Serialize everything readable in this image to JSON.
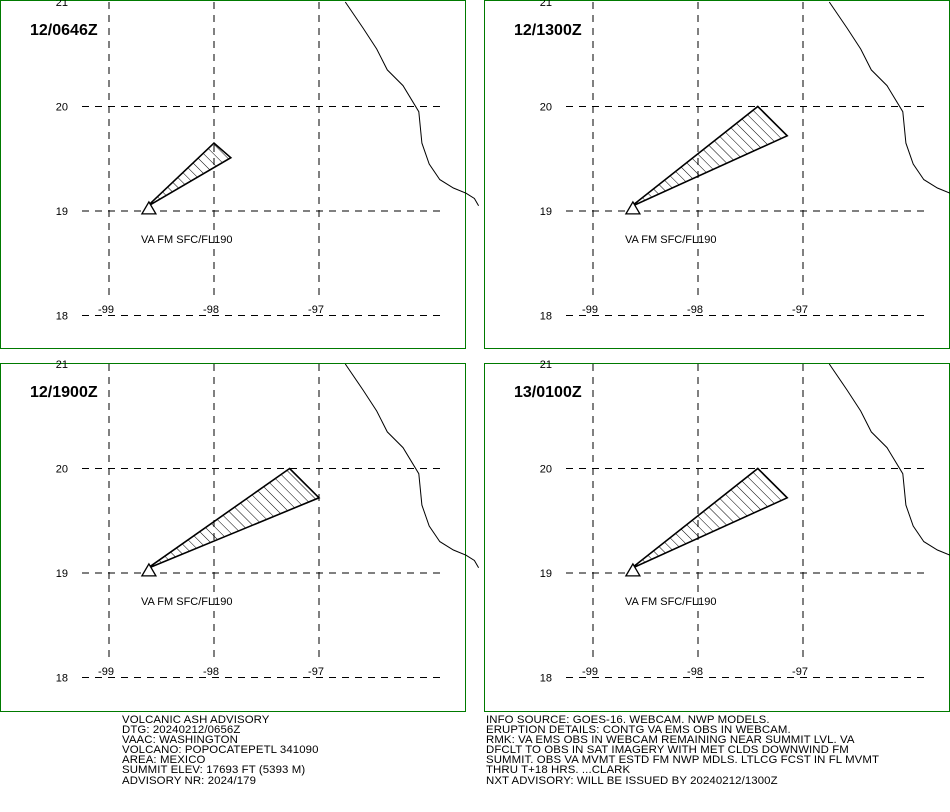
{
  "panels": [
    {
      "time_label": "12/0646Z",
      "va_label": "VA FM SFC/FL190",
      "polygon": [
        [
          -98.0,
          19.65
        ],
        [
          -97.84,
          19.51
        ],
        [
          -98.64,
          19.04
        ]
      ]
    },
    {
      "time_label": "12/1300Z",
      "va_label": "VA FM SFC/FL190",
      "polygon": [
        [
          -97.43,
          20.0
        ],
        [
          -97.15,
          19.72
        ],
        [
          -98.64,
          19.04
        ]
      ]
    },
    {
      "time_label": "12/1900Z",
      "va_label": "VA FM SFC/FL190",
      "polygon": [
        [
          -97.28,
          20.0
        ],
        [
          -97.0,
          19.72
        ],
        [
          -98.64,
          19.04
        ]
      ]
    },
    {
      "time_label": "13/0100Z",
      "va_label": "VA FM SFC/FL190",
      "polygon": [
        [
          -97.43,
          20.0
        ],
        [
          -97.15,
          19.72
        ],
        [
          -98.64,
          19.04
        ]
      ]
    }
  ],
  "axes": {
    "lat_labels": [
      "21",
      "20",
      "19",
      "18"
    ],
    "lon_labels": [
      "-99",
      "-98",
      "-97"
    ]
  },
  "volcano": {
    "lon": -98.62,
    "lat": 19.02
  },
  "coastline": [
    [
      -96.75,
      21.0
    ],
    [
      -96.58,
      20.75
    ],
    [
      -96.45,
      20.55
    ],
    [
      -96.35,
      20.35
    ],
    [
      -96.2,
      20.2
    ],
    [
      -96.05,
      19.95
    ],
    [
      -96.02,
      19.65
    ],
    [
      -95.95,
      19.45
    ],
    [
      -95.85,
      19.3
    ],
    [
      -95.72,
      19.22
    ],
    [
      -95.6,
      19.17
    ],
    [
      -95.52,
      19.12
    ],
    [
      -95.48,
      19.05
    ]
  ],
  "advisory_left": [
    "VOLCANIC ASH ADVISORY",
    "DTG: 20240212/0656Z",
    "VAAC: WASHINGTON",
    "VOLCANO: POPOCATEPETL 341090",
    "AREA: MEXICO",
    "SUMMIT ELEV: 17693 FT (5393 M)",
    "ADVISORY NR: 2024/179"
  ],
  "advisory_right": [
    "INFO SOURCE: GOES-16. WEBCAM. NWP MODELS.",
    "ERUPTION DETAILS: CONTG VA EMS OBS IN WEBCAM.",
    "RMK: VA EMS OBS IN WEBCAM REMAINING NEAR SUMMIT LVL. VA",
    "DFCLT TO OBS IN SAT IMAGERY WITH MET CLDS DOWNWIND FM",
    "SUMMIT. OBS VA MVMT ESTD FM NWP MDLS. LTLCG FCST IN FL MVMT",
    "THRU T+18 HRS. ...CLARK",
    "NXT ADVISORY: WILL BE ISSUED BY 20240212/1300Z"
  ],
  "colors": {
    "border": "#007a00",
    "ink": "#000000",
    "background": "#ffffff"
  }
}
